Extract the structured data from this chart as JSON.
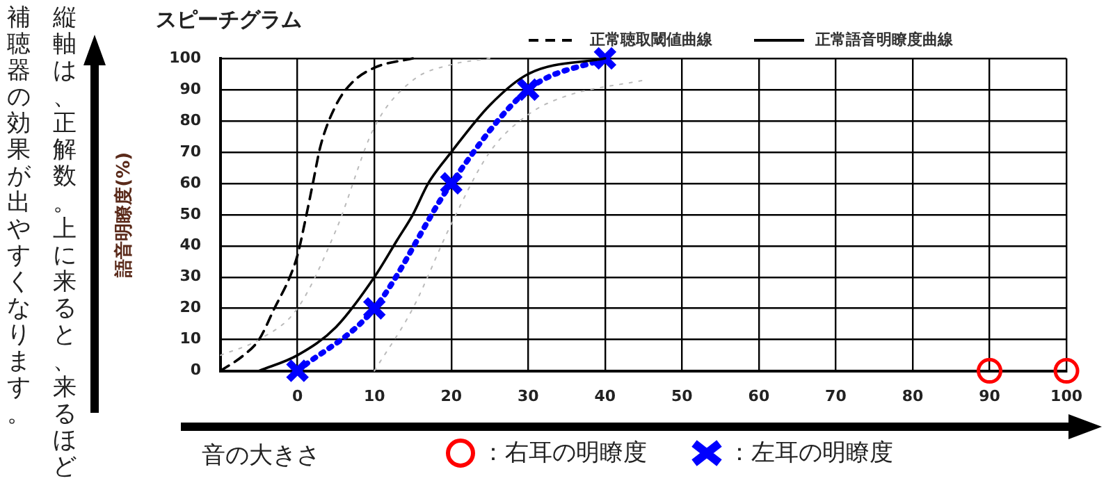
{
  "chart_data": {
    "type": "line",
    "title": "スピーチグラム",
    "xlabel": "音の大きさ",
    "ylabel": "語音明瞭度(%)",
    "annotations": [
      "縦軸は、正解数。上に来ると、来るほど補聴器の効果が出やすくなります。"
    ],
    "xlim": [
      -10,
      100
    ],
    "xticks": [
      0,
      10,
      20,
      30,
      40,
      50,
      60,
      70,
      80,
      90,
      100
    ],
    "ylim": [
      0,
      100
    ],
    "yticks": [
      0,
      10,
      20,
      30,
      40,
      50,
      60,
      70,
      80,
      90,
      100
    ],
    "grid": true,
    "legend": "bottom",
    "series": [
      {
        "name": "正常聴取閾値曲線",
        "color": "#000000",
        "line_style": "dashed",
        "marker": "none",
        "x": [
          -10,
          -7,
          -5,
          -3,
          -1,
          0,
          1,
          2,
          3,
          5,
          7,
          10,
          15
        ],
        "values": [
          0,
          5,
          10,
          20,
          30,
          37,
          48,
          60,
          72,
          85,
          92,
          97,
          100
        ]
      },
      {
        "name": "正常語音明瞭度曲線",
        "color": "#000000",
        "line_style": "solid",
        "marker": "none",
        "x": [
          -5,
          0,
          5,
          10,
          13,
          15,
          17,
          20,
          25,
          30,
          40
        ],
        "values": [
          0,
          5,
          14,
          30,
          42,
          50,
          60,
          70,
          85,
          95,
          100
        ]
      },
      {
        "color": "#bbbbbb",
        "line_style": "dotted",
        "marker": "none",
        "x": [
          -10,
          -5,
          0,
          5,
          10,
          15,
          20,
          25
        ],
        "values": [
          5,
          10,
          20,
          45,
          78,
          93,
          98,
          100
        ]
      },
      {
        "color": "#bbbbbb",
        "line_style": "dotted",
        "marker": "none",
        "x": [
          10,
          15,
          20,
          25,
          30,
          35,
          45
        ],
        "values": [
          0,
          20,
          47,
          70,
          82,
          88,
          93
        ]
      },
      {
        "name": "：左耳の明瞭度",
        "color": "#0000ff",
        "line_style": "dotted",
        "marker": "cross",
        "x": [
          0,
          10,
          20,
          30,
          40
        ],
        "values": [
          0,
          20,
          60,
          90,
          100
        ]
      },
      {
        "name": "：右耳の明瞭度",
        "type": "scatter",
        "color": "#ff0000",
        "marker": "circle",
        "x": [
          90,
          100
        ],
        "values": [
          0,
          0
        ]
      }
    ]
  }
}
